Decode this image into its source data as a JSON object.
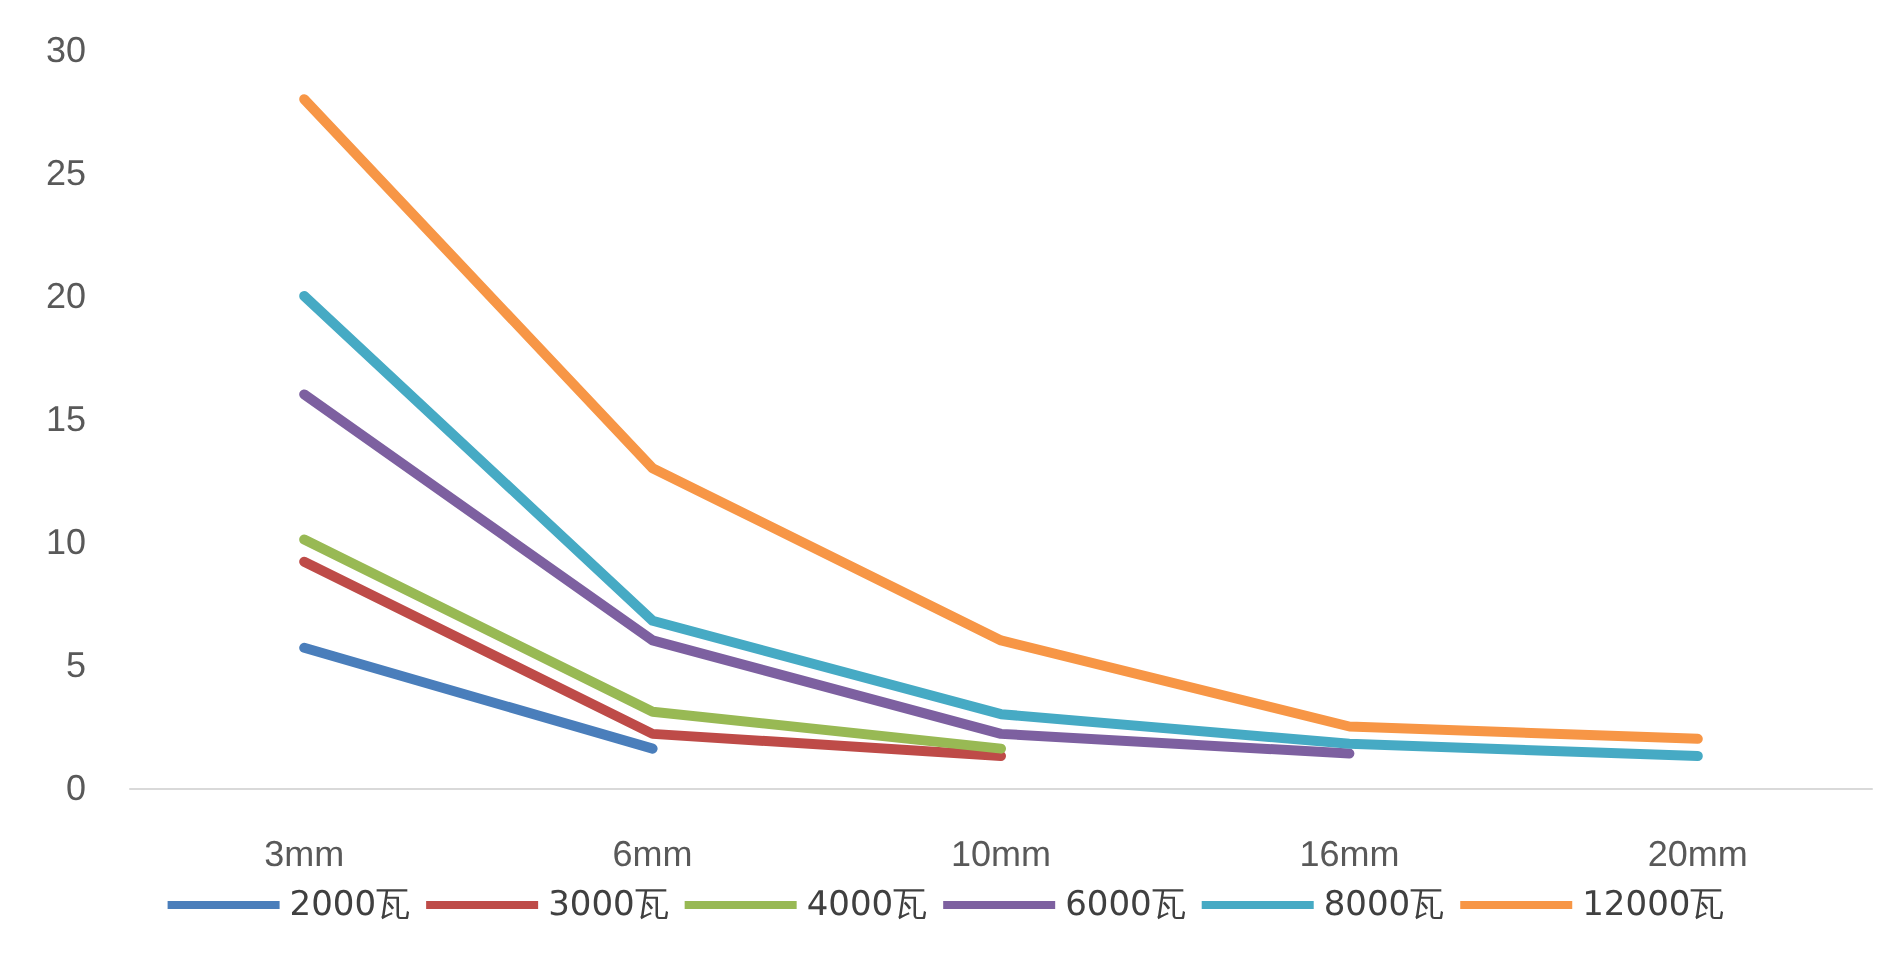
{
  "chart_data": {
    "type": "line",
    "categories": [
      "3mm",
      "6mm",
      "10mm",
      "16mm",
      "20mm"
    ],
    "series": [
      {
        "name": "2000瓦",
        "color": "#4a7ebb",
        "values": [
          5.7,
          1.6,
          null,
          null,
          null
        ]
      },
      {
        "name": "3000瓦",
        "color": "#be4b48",
        "values": [
          9.2,
          2.2,
          1.3,
          null,
          null
        ]
      },
      {
        "name": "4000瓦",
        "color": "#98b954",
        "values": [
          10.1,
          3.1,
          1.6,
          null,
          null
        ]
      },
      {
        "name": "6000瓦",
        "color": "#7d60a0",
        "values": [
          16,
          6.0,
          2.2,
          1.4,
          null
        ]
      },
      {
        "name": "8000瓦",
        "color": "#46aac4",
        "values": [
          20,
          6.8,
          3.0,
          1.8,
          1.3
        ]
      },
      {
        "name": "12000瓦",
        "color": "#f79646",
        "values": [
          28,
          13,
          6,
          2.5,
          2.0
        ]
      }
    ],
    "ylim": [
      0,
      30
    ],
    "yticks": [
      0,
      5,
      10,
      15,
      20,
      25,
      30
    ],
    "grid": false,
    "legend": "bottom",
    "marker": "none",
    "line_style": "solid"
  }
}
